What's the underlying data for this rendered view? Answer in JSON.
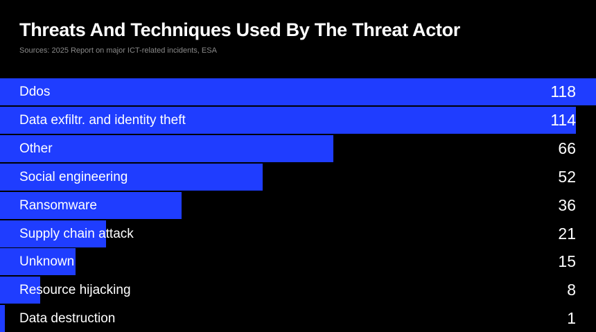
{
  "chart_data": {
    "type": "bar",
    "orientation": "horizontal",
    "title": "Threats And Techniques Used By The Threat Actor",
    "subtitle": "Sources: 2025 Report on major ICT-related incidents, ESA",
    "categories": [
      "Ddos",
      "Data exfiltr. and identity theft",
      "Other",
      "Social engineering",
      "Ransomware",
      "Supply chain attack",
      "Unknown",
      "Resource hijacking",
      "Data destruction"
    ],
    "values": [
      118,
      114,
      66,
      52,
      36,
      21,
      15,
      8,
      1
    ],
    "xlim": [
      0,
      118
    ],
    "grid": false,
    "colors": {
      "bar": "#1f3dff",
      "background": "#000000",
      "text": "#ffffff",
      "subtitle": "#8a8a8a"
    }
  }
}
